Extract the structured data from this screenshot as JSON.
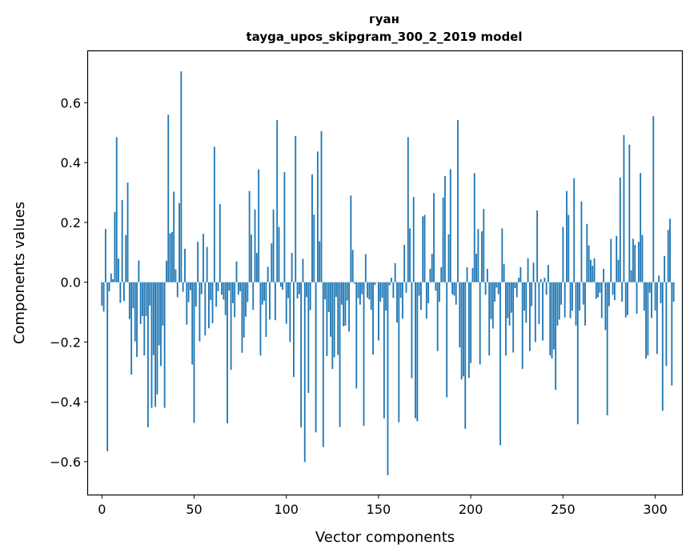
{
  "chart_data": {
    "type": "bar",
    "title": "гуан",
    "subtitle": "tayga_upos_skipgram_300_2_2019 model",
    "xlabel": "Vector components",
    "ylabel": "Components values",
    "xlim": [
      -7.5,
      314.5
    ],
    "ylim": [
      -0.71,
      0.775
    ],
    "xticks": [
      0,
      50,
      100,
      150,
      200,
      250,
      300
    ],
    "xtick_labels": [
      "0",
      "50",
      "100",
      "150",
      "200",
      "250",
      "300"
    ],
    "yticks": [
      -0.6,
      -0.4,
      -0.2,
      0.0,
      0.2,
      0.4,
      0.6
    ],
    "ytick_labels": [
      "−0.6",
      "−0.4",
      "−0.2",
      "0.0",
      "0.2",
      "0.4",
      "0.6"
    ],
    "grid": false,
    "bar_color": "#1f77b4",
    "values": [
      -0.078,
      -0.098,
      0.178,
      -0.565,
      -0.03,
      0.029,
      0.01,
      0.235,
      0.485,
      0.079,
      -0.069,
      0.275,
      -0.063,
      0.158,
      0.333,
      -0.123,
      -0.309,
      -0.087,
      -0.198,
      -0.25,
      0.073,
      -0.14,
      -0.113,
      -0.245,
      -0.113,
      -0.485,
      -0.078,
      -0.42,
      -0.244,
      -0.417,
      -0.375,
      -0.211,
      -0.28,
      -0.145,
      -0.42,
      0.072,
      0.56,
      0.163,
      0.168,
      0.303,
      0.043,
      -0.05,
      0.265,
      0.705,
      -0.032,
      0.112,
      -0.142,
      -0.067,
      -0.027,
      -0.275,
      -0.47,
      -0.081,
      0.135,
      -0.198,
      -0.04,
      0.162,
      -0.178,
      0.118,
      -0.154,
      -0.06,
      -0.137,
      0.453,
      -0.082,
      -0.03,
      0.262,
      -0.042,
      -0.058,
      -0.11,
      -0.472,
      -0.028,
      -0.293,
      -0.07,
      -0.117,
      0.069,
      -0.042,
      -0.03,
      -0.236,
      -0.185,
      -0.115,
      -0.066,
      0.305,
      0.159,
      -0.092,
      0.243,
      0.098,
      0.377,
      -0.245,
      -0.075,
      -0.062,
      -0.183,
      0.052,
      -0.125,
      0.13,
      0.243,
      -0.127,
      0.542,
      0.185,
      -0.015,
      -0.025,
      0.368,
      -0.139,
      -0.053,
      -0.2,
      0.098,
      -0.317,
      0.489,
      -0.054,
      -0.04,
      -0.485,
      0.078,
      -0.601,
      -0.05,
      -0.37,
      -0.093,
      0.361,
      0.226,
      -0.502,
      0.437,
      0.137,
      0.505,
      -0.551,
      -0.057,
      -0.247,
      -0.1,
      -0.182,
      -0.29,
      -0.251,
      -0.049,
      -0.243,
      -0.484,
      -0.075,
      -0.147,
      -0.145,
      -0.061,
      -0.165,
      0.29,
      0.108,
      -0.005,
      -0.355,
      -0.053,
      -0.075,
      -0.04,
      -0.48,
      0.094,
      -0.052,
      -0.058,
      -0.092,
      -0.242,
      -0.009,
      -0.001,
      -0.195,
      -0.065,
      -0.052,
      -0.455,
      -0.095,
      -0.645,
      -0.01,
      0.015,
      -0.052,
      0.064,
      -0.135,
      -0.468,
      -0.052,
      -0.122,
      0.125,
      -0.035,
      0.485,
      0.18,
      -0.321,
      0.285,
      -0.455,
      -0.465,
      -0.045,
      -0.092,
      0.22,
      0.225,
      -0.122,
      -0.07,
      0.045,
      0.095,
      0.298,
      -0.028,
      -0.23,
      -0.065,
      0.05,
      0.283,
      0.355,
      -0.385,
      0.16,
      0.378,
      -0.04,
      -0.045,
      -0.075,
      0.542,
      -0.218,
      -0.325,
      -0.315,
      -0.49,
      0.05,
      -0.32,
      -0.27,
      0.048,
      0.365,
      0.095,
      0.178,
      -0.275,
      0.17,
      0.245,
      -0.042,
      0.045,
      -0.245,
      -0.123,
      -0.155,
      -0.065,
      -0.018,
      -0.04,
      -0.545,
      0.18,
      0.06,
      -0.245,
      -0.12,
      -0.145,
      -0.102,
      -0.235,
      -0.02,
      -0.05,
      0.015,
      0.05,
      -0.29,
      -0.095,
      -0.135,
      0.08,
      -0.23,
      -0.08,
      0.065,
      -0.2,
      0.24,
      -0.14,
      0.01,
      -0.195,
      0.015,
      -0.042,
      0.058,
      -0.245,
      -0.255,
      -0.225,
      -0.36,
      -0.145,
      -0.125,
      -0.075,
      0.185,
      -0.118,
      0.305,
      0.225,
      -0.12,
      -0.095,
      0.348,
      -0.145,
      -0.475,
      -0.095,
      0.27,
      -0.075,
      -0.145,
      0.195,
      0.123,
      0.075,
      0.055,
      0.08,
      -0.055,
      -0.05,
      -0.035,
      -0.12,
      0.045,
      -0.16,
      -0.445,
      -0.08,
      0.145,
      -0.042,
      -0.06,
      0.155,
      0.075,
      0.35,
      -0.065,
      0.492,
      -0.118,
      -0.11,
      0.46,
      0.04,
      0.145,
      0.125,
      -0.105,
      0.135,
      0.365,
      0.158,
      -0.095,
      -0.255,
      -0.245,
      -0.035,
      -0.12,
      0.555,
      -0.095,
      -0.24,
      0.022,
      -0.07,
      -0.43,
      0.088,
      -0.28,
      0.175,
      0.212,
      -0.345,
      -0.065
    ]
  }
}
